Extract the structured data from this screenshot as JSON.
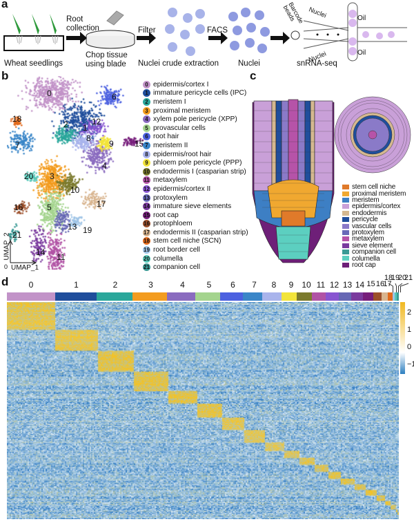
{
  "panels": {
    "a": "a",
    "b": "b",
    "c": "c",
    "d": "d"
  },
  "workflow": {
    "wheat_seedlings": "Wheat seedlings",
    "root_collection": [
      "Root",
      "collection"
    ],
    "chop_tissue": [
      "Chop tissue",
      "using blade"
    ],
    "filter": "Filter",
    "nuclei_crude": "Nuclei crude extraction",
    "facs": "FACS",
    "nuclei": "Nuclei",
    "snrna": "snRNA-seq",
    "barcode_beads": [
      "Barcode",
      "beads"
    ],
    "nuclei_channel": "Nuclei",
    "oil": "Oil"
  },
  "umap": {
    "xlabel": "UMAP_1",
    "ylabel": "UMAP_2",
    "origin": "0"
  },
  "clusters": [
    {
      "id": "0",
      "label": "epidermis/cortex I",
      "color": "#c293c8"
    },
    {
      "id": "1",
      "label": "immature pericycle cells (IPC)",
      "color": "#1f4e9c"
    },
    {
      "id": "2",
      "label": "meristem I",
      "color": "#2aa79b"
    },
    {
      "id": "3",
      "label": "proximal meristem",
      "color": "#f39c1f"
    },
    {
      "id": "4",
      "label": "xylem pole pericycle (XPP)",
      "color": "#8a6bbf"
    },
    {
      "id": "5",
      "label": "provascular cells",
      "color": "#a4d48e"
    },
    {
      "id": "6",
      "label": "root hair",
      "color": "#4c61e0"
    },
    {
      "id": "7",
      "label": "meristem II",
      "color": "#3a86c8"
    },
    {
      "id": "8",
      "label": "epidermis/root hair",
      "color": "#a9b4ec"
    },
    {
      "id": "9",
      "label": "phloem pole pericycle (PPP)",
      "color": "#f2e43a"
    },
    {
      "id": "10",
      "label": "endodermis I (casparian strip)",
      "color": "#7b7a2d"
    },
    {
      "id": "11",
      "label": "metaxylem",
      "color": "#b153a5"
    },
    {
      "id": "12",
      "label": "epidermis/cortex II",
      "color": "#8855d1"
    },
    {
      "id": "13",
      "label": "protoxylem",
      "color": "#6667b4"
    },
    {
      "id": "14",
      "label": "immature sieve elements",
      "color": "#7a3a9e"
    },
    {
      "id": "15",
      "label": "root cap",
      "color": "#761d7b"
    },
    {
      "id": "16",
      "label": "protophloem",
      "color": "#9c4f2a"
    },
    {
      "id": "17",
      "label": "endodermis II (casparian strip)",
      "color": "#d8b48e"
    },
    {
      "id": "18",
      "label": "stem cell niche (SCN)",
      "color": "#e26a1c"
    },
    {
      "id": "19",
      "label": "root border cell",
      "color": "#9fc4e6"
    },
    {
      "id": "20",
      "label": "columella",
      "color": "#56c8b8"
    },
    {
      "id": "21",
      "label": "companion cell",
      "color": "#3a9a95"
    }
  ],
  "root_legend": [
    {
      "label": "stem cell niche",
      "color": "#e07a2a"
    },
    {
      "label": "proximal meristem",
      "color": "#f0a830"
    },
    {
      "label": "meristem",
      "color": "#3d7fc4"
    },
    {
      "label": "epidermis/cortex",
      "color": "#c9a0d8"
    },
    {
      "label": "endodermis",
      "color": "#d4b890"
    },
    {
      "label": "pericycle",
      "color": "#1f4e9c"
    },
    {
      "label": "vascular cells",
      "color": "#8a7ac8"
    },
    {
      "label": "protoxylem",
      "color": "#6a6ab8"
    },
    {
      "label": "metaxylem",
      "color": "#b653a8"
    },
    {
      "label": "sieve element",
      "color": "#7a3a9e"
    },
    {
      "label": "companion cell",
      "color": "#3a9a95"
    },
    {
      "label": "columella",
      "color": "#5ccfc0"
    },
    {
      "label": "root cap",
      "color": "#6e1f78"
    }
  ],
  "heatmap": {
    "column_labels": [
      "0",
      "1",
      "2",
      "3",
      "4",
      "5",
      "6",
      "7",
      "8",
      "9",
      "10",
      "11",
      "12",
      "13",
      "14",
      "15",
      "16",
      "17",
      "18",
      "19",
      "20",
      "21"
    ],
    "colorbar": {
      "ticks": [
        "2",
        "1",
        "0",
        "−1"
      ],
      "low": "#2c7fc0",
      "mid": "#ffffff",
      "high": "#f0b820"
    }
  }
}
